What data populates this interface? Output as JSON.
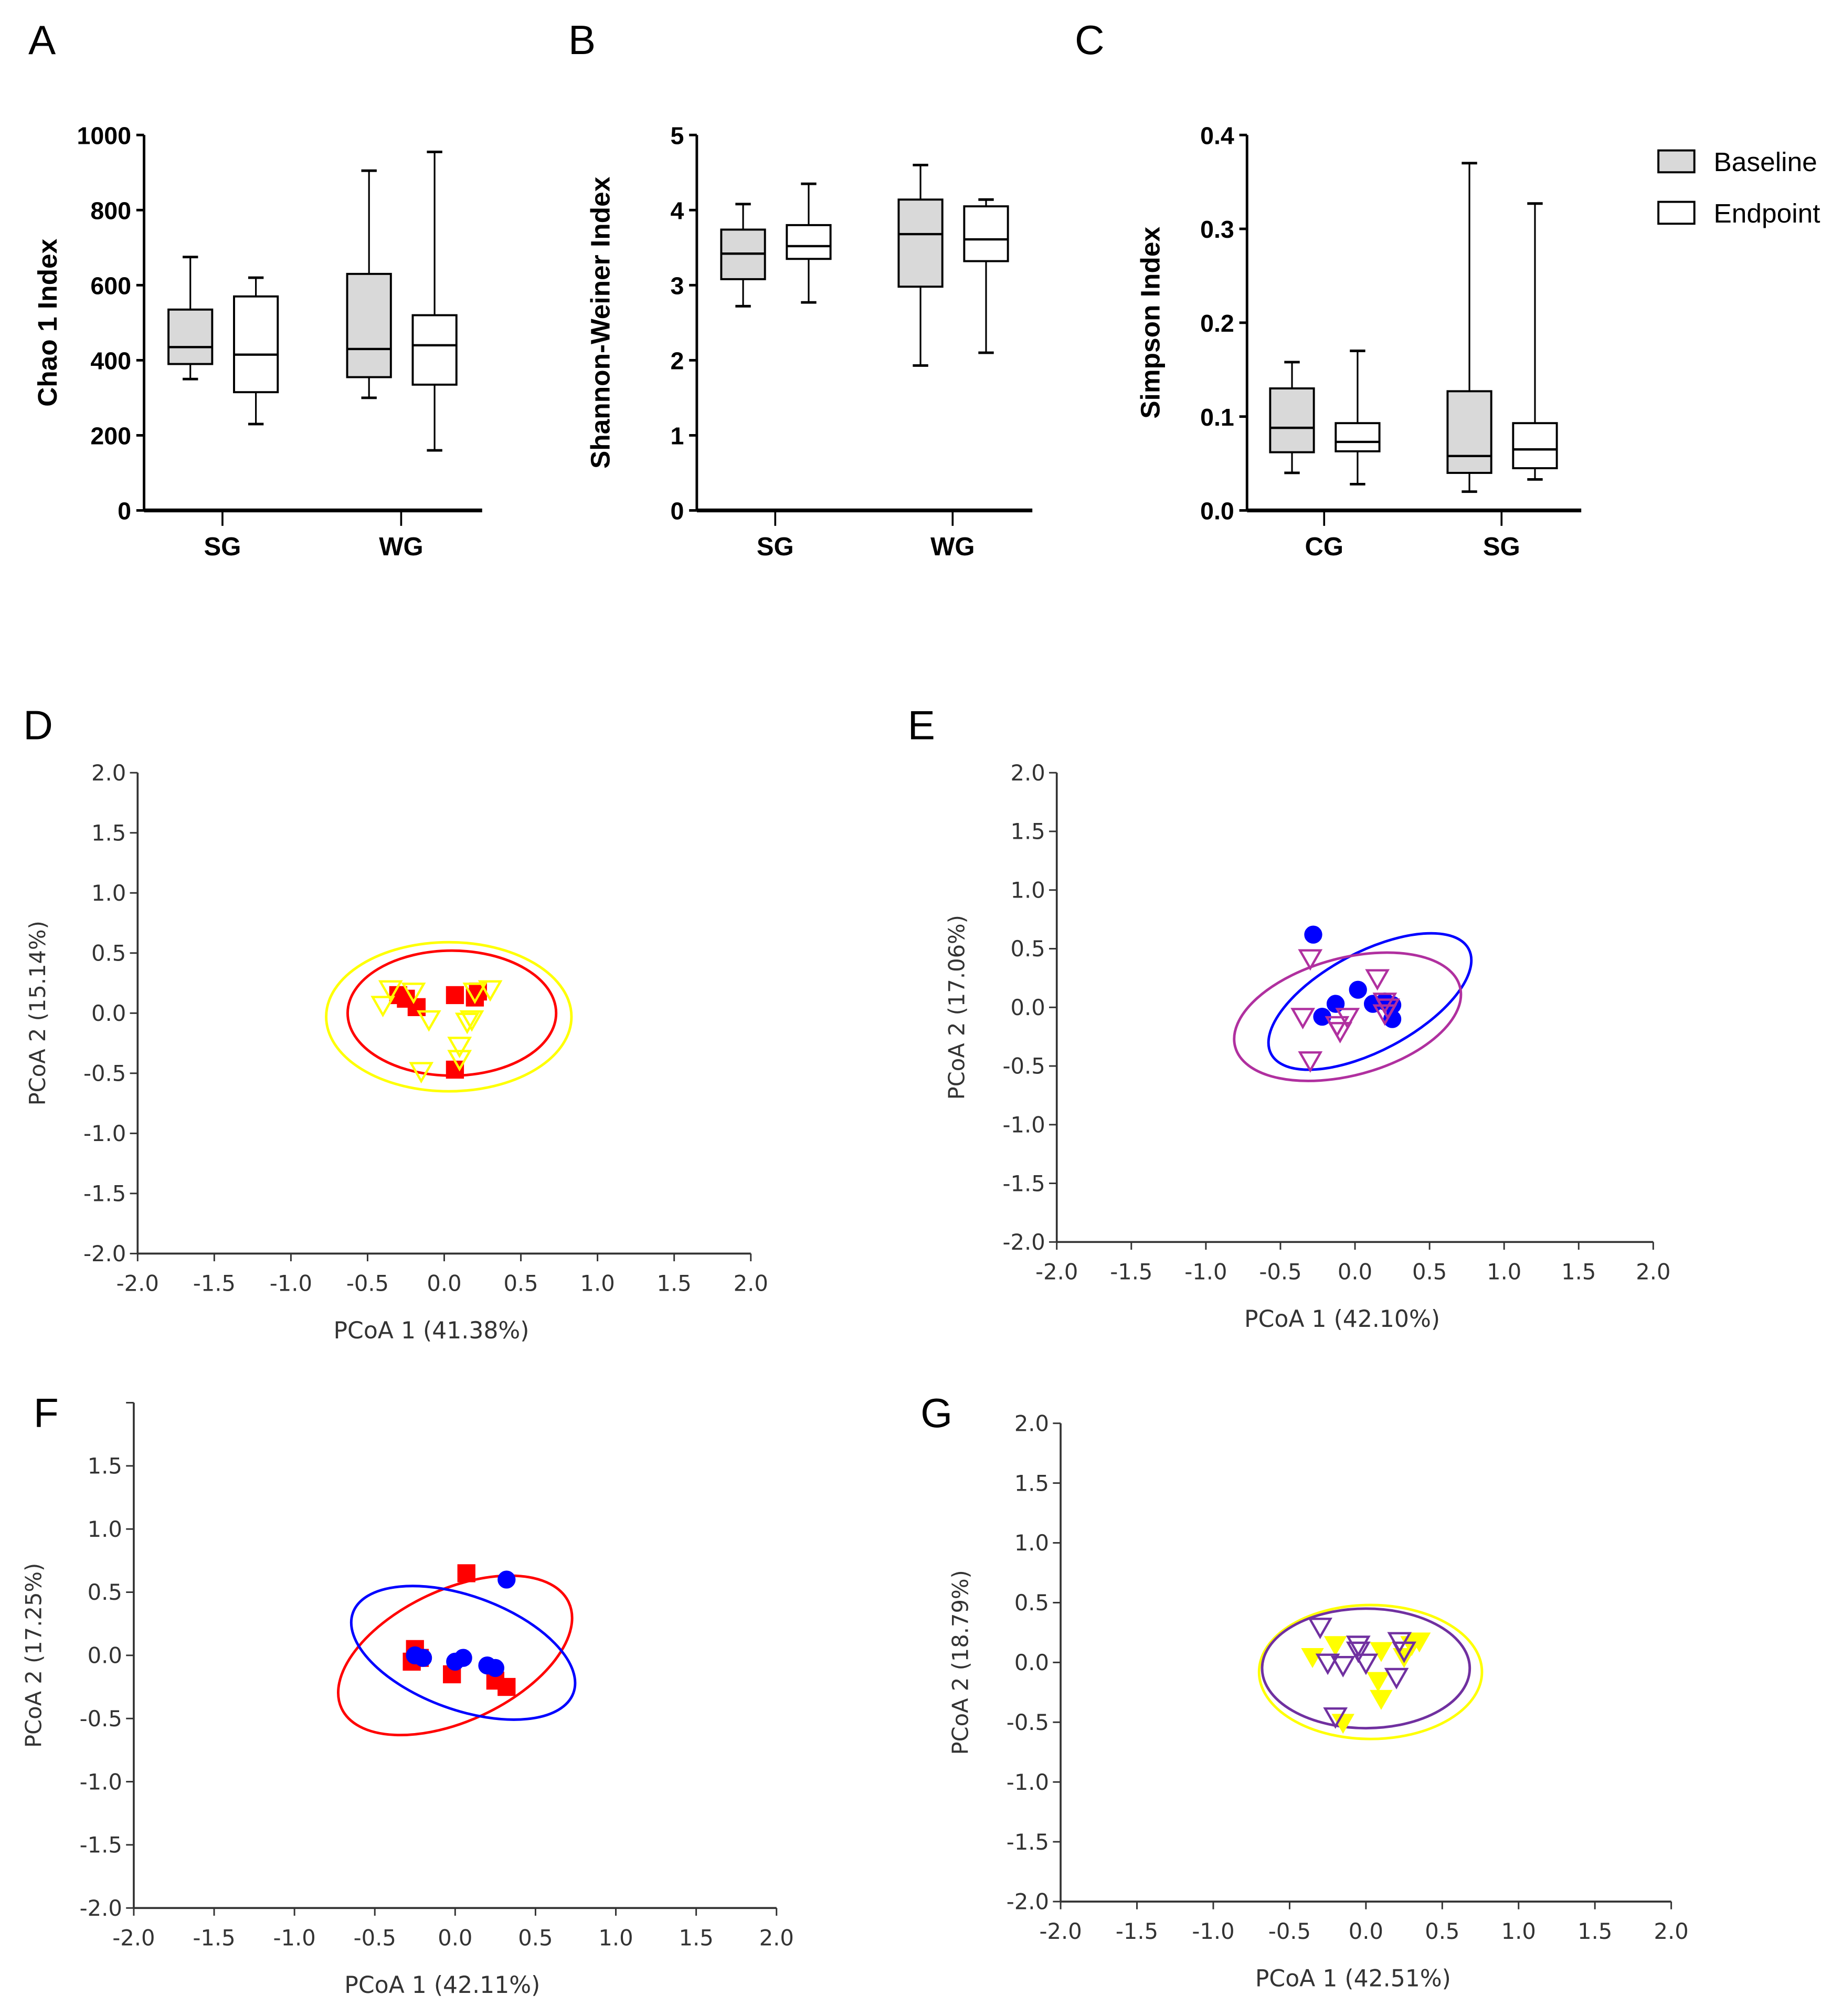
{
  "panel_letters": [
    "A",
    "B",
    "C",
    "D",
    "E",
    "F",
    "G"
  ],
  "legend": {
    "items": [
      {
        "label": "Baseline",
        "color": "#d9d9d9"
      },
      {
        "label": "Endpoint",
        "color": "#ffffff"
      }
    ]
  },
  "chart_data": [
    {
      "type": "box",
      "panel": "A",
      "ylabel": "Chao 1 Index",
      "ylim": [
        0,
        1000
      ],
      "yticks": [
        "0",
        "200",
        "400",
        "600",
        "800",
        "1000"
      ],
      "categories": [
        "SG",
        "WG"
      ],
      "series": [
        {
          "name": "Baseline",
          "stats": [
            [
              350,
              390,
              435,
              535,
              675
            ],
            [
              300,
              355,
              430,
              630,
              905
            ]
          ]
        },
        {
          "name": "Endpoint",
          "stats": [
            [
              230,
              315,
              415,
              570,
              620
            ],
            [
              160,
              335,
              440,
              520,
              955
            ]
          ]
        }
      ]
    },
    {
      "type": "box",
      "panel": "B",
      "ylabel": "Shannon-Weiner Index",
      "ylim": [
        0,
        5
      ],
      "yticks": [
        "0",
        "1",
        "2",
        "3",
        "4",
        "5"
      ],
      "categories": [
        "SG",
        "WG"
      ],
      "series": [
        {
          "name": "Baseline",
          "stats": [
            [
              2.72,
              3.08,
              3.42,
              3.74,
              4.08
            ],
            [
              1.93,
              2.98,
              3.68,
              4.14,
              4.6
            ]
          ]
        },
        {
          "name": "Endpoint",
          "stats": [
            [
              2.77,
              3.35,
              3.52,
              3.8,
              4.35
            ],
            [
              2.1,
              3.32,
              3.61,
              4.05,
              4.14
            ]
          ]
        }
      ]
    },
    {
      "type": "box",
      "panel": "C",
      "ylabel": "Simpson Index",
      "ylim": [
        0,
        0.4
      ],
      "yticks": [
        "0.0",
        "0.1",
        "0.2",
        "0.3",
        "0.4"
      ],
      "categories": [
        "CG",
        "SG"
      ],
      "series": [
        {
          "name": "Baseline",
          "stats": [
            [
              0.04,
              0.062,
              0.088,
              0.13,
              0.158
            ],
            [
              0.02,
              0.04,
              0.058,
              0.127,
              0.37
            ]
          ]
        },
        {
          "name": "Endpoint",
          "stats": [
            [
              0.028,
              0.063,
              0.073,
              0.093,
              0.17
            ],
            [
              0.033,
              0.045,
              0.065,
              0.093,
              0.327
            ]
          ]
        }
      ]
    },
    {
      "type": "scatter",
      "panel": "D",
      "xlabel": "PCoA 1 (41.38%)",
      "ylabel": "PCoA 2 (15.14%)",
      "xlim": [
        -2,
        2
      ],
      "ylim": [
        -2,
        2
      ],
      "xticks": [
        "-2.0",
        "-1.5",
        "-1.0",
        "-0.5",
        "0.0",
        "0.5",
        "1.0",
        "1.5",
        "2.0"
      ],
      "yticks": [
        "-2.0",
        "-1.5",
        "-1.0",
        "-0.5",
        "0.0",
        "0.5",
        "1.0",
        "1.5",
        "2.0"
      ],
      "series": [
        {
          "marker": "square",
          "color": "#ff0000",
          "fill": true,
          "points": [
            [
              -0.3,
              0.15
            ],
            [
              -0.25,
              0.12
            ],
            [
              -0.18,
              0.05
            ],
            [
              0.07,
              0.15
            ],
            [
              0.2,
              0.13
            ],
            [
              0.22,
              0.18
            ],
            [
              0.07,
              -0.47
            ]
          ],
          "ellipse": {
            "cx": 0.05,
            "cy": 0,
            "rx": 0.68,
            "ry": 0.52,
            "angle": 0
          }
        },
        {
          "marker": "triangle-down",
          "color": "#ffff00",
          "fill": false,
          "points": [
            [
              -0.35,
              0.2
            ],
            [
              -0.4,
              0.07
            ],
            [
              -0.2,
              0.18
            ],
            [
              -0.1,
              -0.05
            ],
            [
              0.2,
              0.18
            ],
            [
              0.3,
              0.2
            ],
            [
              0.18,
              -0.05
            ],
            [
              0.15,
              -0.07
            ],
            [
              0.1,
              -0.27
            ],
            [
              0.1,
              -0.38
            ],
            [
              -0.15,
              -0.48
            ]
          ],
          "ellipse": {
            "cx": 0.03,
            "cy": -0.03,
            "rx": 0.8,
            "ry": 0.62,
            "angle": 0
          }
        }
      ]
    },
    {
      "type": "scatter",
      "panel": "E",
      "xlabel": "PCoA 1 (42.10%)",
      "ylabel": "PCoA 2 (17.06%)",
      "xlim": [
        -2,
        2
      ],
      "ylim": [
        -2,
        2
      ],
      "xticks": [
        "-2.0",
        "-1.5",
        "-1.0",
        "-0.5",
        "0.0",
        "0.5",
        "1.0",
        "1.5",
        "2.0"
      ],
      "yticks": [
        "-2.0",
        "-1.5",
        "-1.0",
        "-0.5",
        "0.0",
        "0.5",
        "1.0",
        "1.5",
        "2.0"
      ],
      "series": [
        {
          "marker": "circle",
          "color": "#0000ff",
          "fill": true,
          "points": [
            [
              -0.28,
              0.62
            ],
            [
              -0.13,
              0.03
            ],
            [
              -0.22,
              -0.08
            ],
            [
              0.02,
              0.15
            ],
            [
              0.12,
              0.03
            ],
            [
              0.2,
              0.05
            ],
            [
              0.25,
              0.02
            ],
            [
              0.25,
              -0.1
            ]
          ],
          "ellipse": {
            "cx": 0.1,
            "cy": 0.05,
            "rx": 0.75,
            "ry": 0.42,
            "angle": -28
          }
        },
        {
          "marker": "triangle-down",
          "color": "#b0309f",
          "fill": false,
          "points": [
            [
              -0.3,
              0.42
            ],
            [
              -0.35,
              -0.08
            ],
            [
              -0.3,
              -0.45
            ],
            [
              -0.12,
              -0.15
            ],
            [
              -0.1,
              -0.2
            ],
            [
              -0.05,
              -0.08
            ],
            [
              0.15,
              0.25
            ],
            [
              0.2,
              0.05
            ],
            [
              0.22,
              0.0
            ],
            [
              0.2,
              -0.05
            ]
          ],
          "ellipse": {
            "cx": -0.05,
            "cy": -0.08,
            "rx": 0.78,
            "ry": 0.5,
            "angle": -15
          }
        }
      ]
    },
    {
      "type": "scatter",
      "panel": "F",
      "xlabel": "PCoA 1 (42.11%)",
      "ylabel": "PCoA 2 (17.25%)",
      "xlim": [
        -2,
        2
      ],
      "ylim": [
        -2,
        2
      ],
      "xticks": [
        "-2.0",
        "-1.5",
        "-1.0",
        "-0.5",
        "0.0",
        "0.5",
        "1.0",
        "1.5",
        "2.0"
      ],
      "yticks": [
        "-2.0",
        "-1.5",
        "-1.0",
        "-0.5",
        "0.0",
        "0.5",
        "1.0",
        "1.5",
        ""
      ],
      "series": [
        {
          "marker": "square",
          "color": "#ff0000",
          "fill": true,
          "points": [
            [
              -0.25,
              0.05
            ],
            [
              -0.27,
              -0.05
            ],
            [
              -0.22,
              -0.02
            ],
            [
              -0.02,
              -0.15
            ],
            [
              0.07,
              0.65
            ],
            [
              0.25,
              -0.2
            ],
            [
              0.32,
              -0.25
            ]
          ],
          "ellipse": {
            "cx": 0.0,
            "cy": 0.0,
            "rx": 0.78,
            "ry": 0.52,
            "angle": -25
          }
        },
        {
          "marker": "circle",
          "color": "#0000ff",
          "fill": true,
          "points": [
            [
              -0.25,
              0.0
            ],
            [
              -0.2,
              -0.02
            ],
            [
              0.0,
              -0.05
            ],
            [
              0.05,
              -0.02
            ],
            [
              0.2,
              -0.08
            ],
            [
              0.25,
              -0.1
            ],
            [
              0.32,
              0.6
            ]
          ],
          "ellipse": {
            "cx": 0.05,
            "cy": 0.02,
            "rx": 0.73,
            "ry": 0.45,
            "angle": 20
          }
        }
      ]
    },
    {
      "type": "scatter",
      "panel": "G",
      "xlabel": "PCoA 1 (42.51%)",
      "ylabel": "PCoA 2 (18.79%)",
      "xlim": [
        -2,
        2
      ],
      "ylim": [
        -2,
        2
      ],
      "xticks": [
        "-2.0",
        "-1.5",
        "-1.0",
        "-0.5",
        "0.0",
        "0.5",
        "1.0",
        "1.5",
        "2.0"
      ],
      "yticks": [
        "-2.0",
        "-1.5",
        "-1.0",
        "-0.5",
        "0.0",
        "0.5",
        "1.0",
        "1.5",
        "2.0"
      ],
      "series": [
        {
          "marker": "triangle-down",
          "color": "#ffff00",
          "fill": true,
          "points": [
            [
              -0.35,
              0.05
            ],
            [
              -0.2,
              0.15
            ],
            [
              0.1,
              0.1
            ],
            [
              0.3,
              0.15
            ],
            [
              0.35,
              0.18
            ],
            [
              0.25,
              0.05
            ],
            [
              0.08,
              -0.15
            ],
            [
              0.1,
              -0.3
            ],
            [
              -0.15,
              -0.5
            ]
          ],
          "ellipse": {
            "cx": 0.03,
            "cy": -0.08,
            "rx": 0.73,
            "ry": 0.56,
            "angle": 0
          }
        },
        {
          "marker": "triangle-down",
          "color": "#7030a0",
          "fill": false,
          "points": [
            [
              -0.3,
              0.3
            ],
            [
              -0.25,
              0.0
            ],
            [
              -0.15,
              -0.02
            ],
            [
              -0.05,
              0.1
            ],
            [
              0.0,
              0.0
            ],
            [
              -0.05,
              0.15
            ],
            [
              0.22,
              0.18
            ],
            [
              0.25,
              0.1
            ],
            [
              0.2,
              -0.12
            ],
            [
              -0.2,
              -0.45
            ]
          ],
          "ellipse": {
            "cx": 0.0,
            "cy": -0.05,
            "rx": 0.68,
            "ry": 0.5,
            "angle": 0
          }
        }
      ]
    }
  ]
}
